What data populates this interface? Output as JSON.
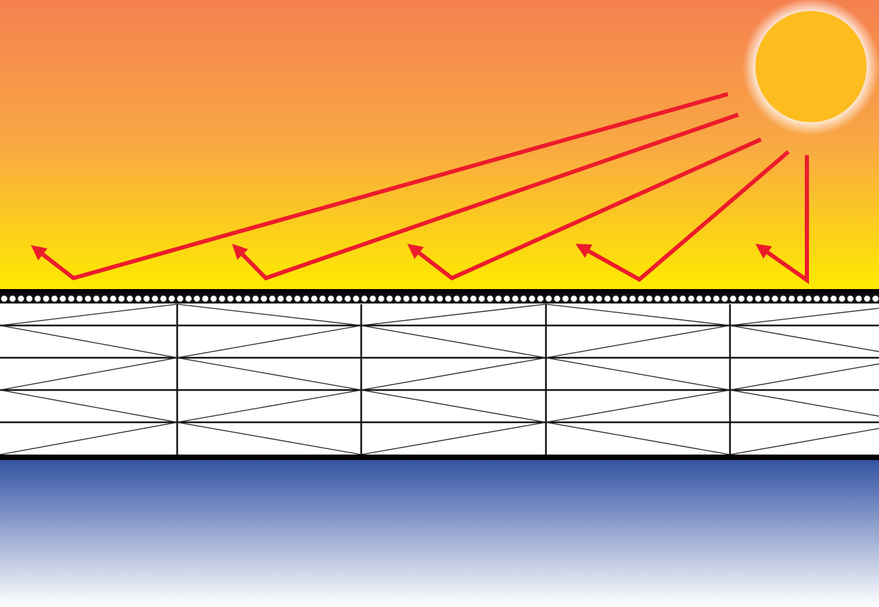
{
  "colors": {
    "sky_top": "#f5804f",
    "sky_mid": "#f9a844",
    "sky_bottom": "#fdea00",
    "sun": "#fdbd1e",
    "ray": "#ec1c2b",
    "ground_top": "#3353a3",
    "ground_bottom": "#ffffff",
    "panel_line": "#111111"
  },
  "icons": [
    "sun-icon",
    "reflected-ray-arrow-icon"
  ],
  "rays_count": 5,
  "panel_columns": 5,
  "panel_rows": 5
}
